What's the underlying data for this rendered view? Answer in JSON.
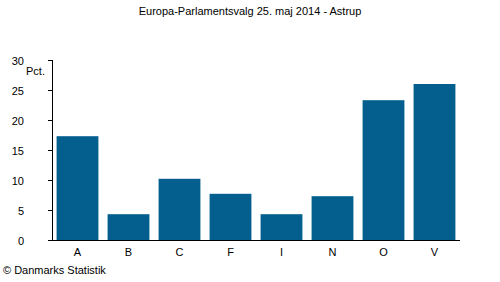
{
  "chart_data": {
    "type": "bar",
    "title": "Europa-Parlamentsvalg 25. maj 2014 - Astrup",
    "ylabel": "Pct.",
    "source": "© Danmarks Statistik",
    "categories": [
      "A",
      "B",
      "C",
      "F",
      "I",
      "N",
      "O",
      "V"
    ],
    "values": [
      17.3,
      4.3,
      10.2,
      7.7,
      4.3,
      7.3,
      23.3,
      26.0
    ],
    "color": "#045f8f",
    "ylim": [
      0,
      30
    ],
    "yticks": [
      0,
      5,
      10,
      15,
      20,
      25,
      30
    ],
    "grid": false
  }
}
